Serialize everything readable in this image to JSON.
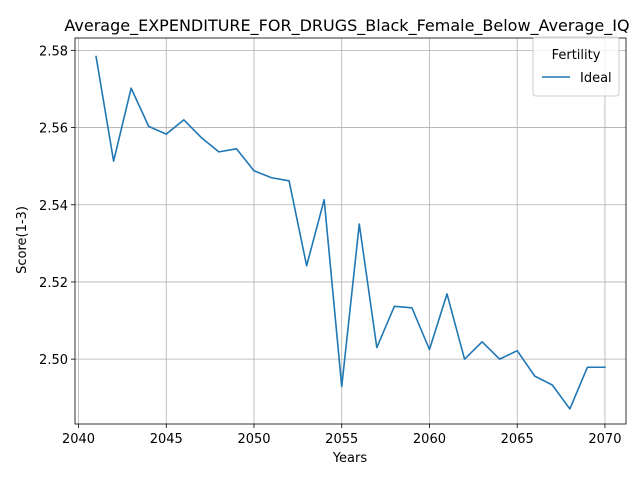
{
  "chart_data": {
    "type": "line",
    "title": "Average_EXPENDITURE_FOR_DRUGS_Black_Female_Below_Average_IQ",
    "xlabel": "Years",
    "ylabel": "Score(1-3)",
    "xlim": [
      2039.8,
      2071.2
    ],
    "ylim": [
      2.4832,
      2.5832
    ],
    "xticks": [
      2040,
      2045,
      2050,
      2055,
      2060,
      2065,
      2070
    ],
    "yticks": [
      2.5,
      2.52,
      2.54,
      2.56,
      2.58
    ],
    "grid": true,
    "legend": {
      "title": "Fertility",
      "placement": "top-right"
    },
    "colors": {
      "Ideal": "#1f77b4"
    },
    "x": [
      2041,
      2042,
      2043,
      2044,
      2045,
      2046,
      2047,
      2048,
      2049,
      2050,
      2051,
      2052,
      2053,
      2054,
      2055,
      2056,
      2057,
      2058,
      2059,
      2060,
      2061,
      2062,
      2063,
      2064,
      2065,
      2066,
      2067,
      2068,
      2069,
      2070
    ],
    "series": [
      {
        "name": "Ideal",
        "values": [
          2.5784,
          2.5513,
          2.5702,
          2.5603,
          2.5583,
          2.562,
          2.5574,
          2.5537,
          2.5545,
          2.5488,
          2.547,
          2.5462,
          2.5242,
          2.5413,
          2.4929,
          2.535,
          2.503,
          2.5137,
          2.5133,
          2.5025,
          2.5169,
          2.5,
          2.5045,
          2.5,
          2.5022,
          2.4956,
          2.4933,
          2.4871,
          2.4979,
          2.4979
        ]
      }
    ]
  }
}
